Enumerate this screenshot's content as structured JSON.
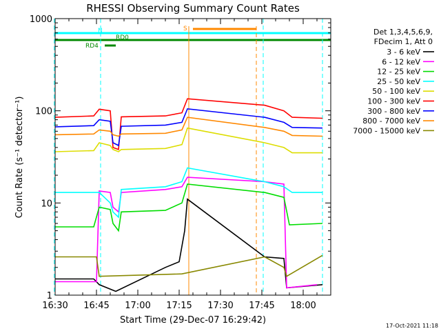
{
  "chart_data": {
    "type": "line",
    "title": "RHESSI Observing Summary Count Rates",
    "xlabel": "Start Time (29-Dec-07 16:29:42)",
    "ylabel": "Count Rate (s⁻¹ detector⁻¹)",
    "y_scale": "log",
    "ylim": [
      1,
      1000
    ],
    "y_ticks": [
      "1",
      "10",
      "100",
      "1000"
    ],
    "xlim": [
      "16:30",
      "18:10"
    ],
    "x_ticks": [
      "16:30",
      "16:45",
      "17:00",
      "17:15",
      "17:30",
      "17:45",
      "18:00"
    ],
    "legend_header": [
      "Det 1,3,4,5,6,9,",
      "FDecim 1, Att 0"
    ],
    "legend_position": "right",
    "footer": "17-Oct-2021 11:18",
    "series": [
      {
        "name": "3 - 6 keV",
        "color": "#000000",
        "points": [
          [
            "16:30",
            1.5
          ],
          [
            "16:44",
            1.5
          ],
          [
            "16:46",
            1.3
          ],
          [
            "16:52",
            1.1
          ],
          [
            "17:10",
            2.0
          ],
          [
            "17:15",
            2.3
          ],
          [
            "17:17",
            5.0
          ],
          [
            "17:18",
            11.0
          ],
          [
            "17:46",
            2.6
          ],
          [
            "17:53",
            2.5
          ],
          [
            "17:54",
            1.2
          ],
          [
            "18:07",
            1.3
          ]
        ]
      },
      {
        "name": "6 - 12 keV",
        "color": "#ff00ff",
        "points": [
          [
            "16:30",
            1.4
          ],
          [
            "16:45",
            1.4
          ],
          [
            "16:46",
            13.5
          ],
          [
            "16:50",
            13.0
          ],
          [
            "16:51",
            9.0
          ],
          [
            "16:53",
            8.0
          ],
          [
            "16:54",
            13.0
          ],
          [
            "17:10",
            14.0
          ],
          [
            "17:16",
            15.0
          ],
          [
            "17:18",
            19.0
          ],
          [
            "17:46",
            17.0
          ],
          [
            "17:53",
            16.0
          ],
          [
            "17:54",
            1.2
          ],
          [
            "18:05",
            1.3
          ]
        ]
      },
      {
        "name": "12 - 25 keV",
        "color": "#00dd00",
        "points": [
          [
            "16:30",
            5.5
          ],
          [
            "16:44",
            5.5
          ],
          [
            "16:46",
            9.0
          ],
          [
            "16:50",
            8.5
          ],
          [
            "16:51",
            6.0
          ],
          [
            "16:53",
            5.0
          ],
          [
            "16:54",
            8.0
          ],
          [
            "17:10",
            8.3
          ],
          [
            "17:16",
            10.0
          ],
          [
            "17:18",
            16.0
          ],
          [
            "17:46",
            13.0
          ],
          [
            "17:53",
            11.5
          ],
          [
            "17:55",
            5.8
          ],
          [
            "18:07",
            6.0
          ]
        ]
      },
      {
        "name": "25 - 50 keV",
        "color": "#00ffff",
        "points": [
          [
            "16:30",
            13.0
          ],
          [
            "16:44",
            13.0
          ],
          [
            "16:46",
            13.0
          ],
          [
            "16:50",
            10.0
          ],
          [
            "16:51",
            8.0
          ],
          [
            "16:53",
            7.0
          ],
          [
            "16:54",
            14.0
          ],
          [
            "17:10",
            15.0
          ],
          [
            "17:16",
            17.0
          ],
          [
            "17:18",
            24.0
          ],
          [
            "17:46",
            17.0
          ],
          [
            "17:53",
            15.0
          ],
          [
            "17:56",
            13.0
          ],
          [
            "18:07",
            13.0
          ]
        ]
      },
      {
        "name": "50 - 100 keV",
        "color": "#dddd00",
        "points": [
          [
            "16:30",
            36.0
          ],
          [
            "16:44",
            37.0
          ],
          [
            "16:46",
            45.0
          ],
          [
            "16:50",
            42.0
          ],
          [
            "16:51",
            38.0
          ],
          [
            "16:53",
            36.0
          ],
          [
            "16:54",
            38.0
          ],
          [
            "17:10",
            39.0
          ],
          [
            "17:16",
            43.0
          ],
          [
            "17:18",
            65.0
          ],
          [
            "17:46",
            45.0
          ],
          [
            "17:53",
            40.0
          ],
          [
            "17:56",
            35.0
          ],
          [
            "18:07",
            35.0
          ]
        ]
      },
      {
        "name": "100 - 300 keV",
        "color": "#ff0000",
        "points": [
          [
            "16:30",
            85.0
          ],
          [
            "16:44",
            88.0
          ],
          [
            "16:46",
            104.0
          ],
          [
            "16:50",
            100.0
          ],
          [
            "16:51",
            40.0
          ],
          [
            "16:53",
            38.0
          ],
          [
            "16:54",
            86.0
          ],
          [
            "17:10",
            88.0
          ],
          [
            "17:16",
            95.0
          ],
          [
            "17:18",
            135.0
          ],
          [
            "17:46",
            115.0
          ],
          [
            "17:53",
            100.0
          ],
          [
            "17:56",
            85.0
          ],
          [
            "18:07",
            83.0
          ]
        ]
      },
      {
        "name": "300 - 800 keV",
        "color": "#0000ff",
        "points": [
          [
            "16:30",
            67.0
          ],
          [
            "16:44",
            69.0
          ],
          [
            "16:46",
            80.0
          ],
          [
            "16:50",
            77.0
          ],
          [
            "16:51",
            45.0
          ],
          [
            "16:53",
            42.0
          ],
          [
            "16:54",
            68.0
          ],
          [
            "17:10",
            70.0
          ],
          [
            "17:16",
            75.0
          ],
          [
            "17:18",
            105.0
          ],
          [
            "17:46",
            85.0
          ],
          [
            "17:53",
            75.0
          ],
          [
            "17:56",
            66.0
          ],
          [
            "18:07",
            65.0
          ]
        ]
      },
      {
        "name": "800 - 7000 keV",
        "color": "#ff8800",
        "points": [
          [
            "16:30",
            55.0
          ],
          [
            "16:44",
            56.0
          ],
          [
            "16:46",
            62.0
          ],
          [
            "16:50",
            60.0
          ],
          [
            "16:51",
            55.0
          ],
          [
            "16:53",
            53.0
          ],
          [
            "16:54",
            56.0
          ],
          [
            "17:10",
            57.0
          ],
          [
            "17:16",
            62.0
          ],
          [
            "17:18",
            85.0
          ],
          [
            "17:46",
            66.0
          ],
          [
            "17:53",
            60.0
          ],
          [
            "17:56",
            54.0
          ],
          [
            "18:07",
            53.0
          ]
        ]
      },
      {
        "name": "7000 - 15000 keV",
        "color": "#888800",
        "points": [
          [
            "16:30",
            2.6
          ],
          [
            "16:45",
            2.6
          ],
          [
            "16:46",
            1.6
          ],
          [
            "17:16",
            1.7
          ],
          [
            "17:46",
            2.6
          ],
          [
            "17:53",
            2.0
          ],
          [
            "17:54",
            1.6
          ],
          [
            "18:07",
            2.7
          ]
        ]
      }
    ],
    "flag_bars": [
      {
        "label": "N",
        "color": "#00ffff",
        "start": "16:30",
        "end": "18:10"
      },
      {
        "label": "S",
        "color": "#ff8800",
        "start": "17:20",
        "end": "17:43"
      },
      {
        "label": "RD0",
        "color": "#008800",
        "start": "16:30",
        "end": "18:10"
      },
      {
        "label": "RD4",
        "color": "#008800",
        "start": "16:48",
        "end": "16:52"
      }
    ],
    "night_intervals": [
      [
        "16:29:42",
        "16:46:30"
      ],
      [
        "17:45:30",
        "18:07:00"
      ]
    ],
    "saa_interval": [
      "17:18:30",
      "17:43:00"
    ],
    "grid": false
  }
}
